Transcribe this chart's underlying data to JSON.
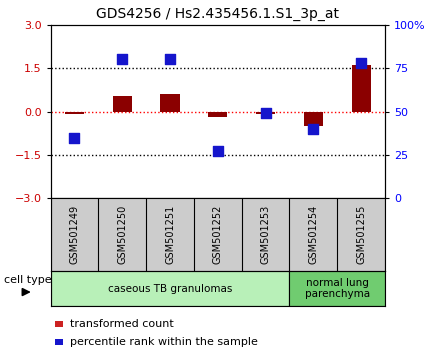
{
  "title": "GDS4256 / Hs2.435456.1.S1_3p_at",
  "samples": [
    "GSM501249",
    "GSM501250",
    "GSM501251",
    "GSM501252",
    "GSM501253",
    "GSM501254",
    "GSM501255"
  ],
  "transformed_count": [
    -0.07,
    0.55,
    0.6,
    -0.2,
    -0.1,
    -0.5,
    1.6
  ],
  "percentile_rank": [
    35,
    80,
    80,
    27,
    49,
    40,
    78
  ],
  "ylim_left": [
    -3,
    3
  ],
  "ylim_right": [
    0,
    100
  ],
  "yticks_left": [
    -3,
    -1.5,
    0,
    1.5,
    3
  ],
  "yticks_right": [
    0,
    25,
    50,
    75,
    100
  ],
  "ytick_labels_right": [
    "0",
    "25",
    "50",
    "75",
    "100%"
  ],
  "bar_color": "#8B0000",
  "dot_color": "#1515cc",
  "groups": [
    {
      "label": "caseous TB granulomas",
      "samples": [
        0,
        1,
        2,
        3,
        4
      ],
      "color": "#b8f0b8"
    },
    {
      "label": "normal lung\nparenchyma",
      "samples": [
        5,
        6
      ],
      "color": "#70cc70"
    }
  ],
  "cell_type_label": "cell type",
  "legend_items": [
    {
      "color": "#cc2222",
      "label": "transformed count"
    },
    {
      "color": "#1515cc",
      "label": "percentile rank within the sample"
    }
  ],
  "bar_width": 0.4,
  "dot_size": 55,
  "label_box_color": "#cccccc",
  "fig_width": 4.4,
  "fig_height": 3.54,
  "dpi": 100
}
